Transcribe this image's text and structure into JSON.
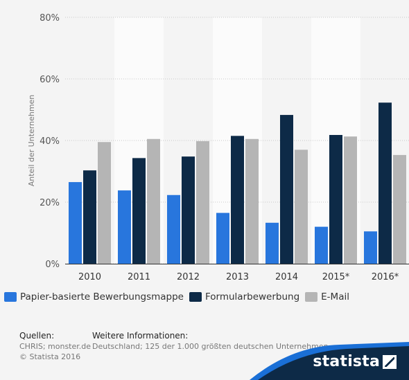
{
  "colors": {
    "series": [
      "#2876dd",
      "#0d2a47",
      "#b5b5b5"
    ],
    "brand_dark": "#0d2a47",
    "brand_light": "#1a6fd6"
  },
  "chart_data": {
    "type": "bar",
    "categories": [
      "2010",
      "2011",
      "2012",
      "2013",
      "2014",
      "2015*",
      "2016*"
    ],
    "series": [
      {
        "name": "Papier-basierte Bewerbungsmappe",
        "values": [
          26.5,
          23.8,
          22.3,
          16.5,
          13.3,
          12.0,
          10.5
        ]
      },
      {
        "name": "Formularbewerbung",
        "values": [
          30.3,
          34.3,
          34.8,
          41.5,
          48.3,
          41.8,
          52.3
        ]
      },
      {
        "name": "E-Mail",
        "values": [
          39.5,
          40.5,
          39.8,
          40.5,
          37.0,
          41.3,
          35.3
        ]
      }
    ],
    "ylabel": "Anteil der Unternehmen",
    "yticks": [
      "0%",
      "20%",
      "40%",
      "60%",
      "80%"
    ],
    "ylim": [
      0,
      80
    ],
    "grid": true,
    "legend_position": "bottom"
  },
  "legend": [
    {
      "label": "Papier-basierte Bewerbungsmappe"
    },
    {
      "label": "Formularbewerbung"
    },
    {
      "label": "E-Mail"
    }
  ],
  "footer": {
    "sources_head": "Quellen:",
    "sources_line1": "CHRIS; monster.de",
    "sources_line2": "© Statista 2016",
    "info_head": "Weitere Informationen:",
    "info_line1": "Deutschland; 125 der 1.000 größten deutschen Unternehmen",
    "brand": "statista"
  }
}
